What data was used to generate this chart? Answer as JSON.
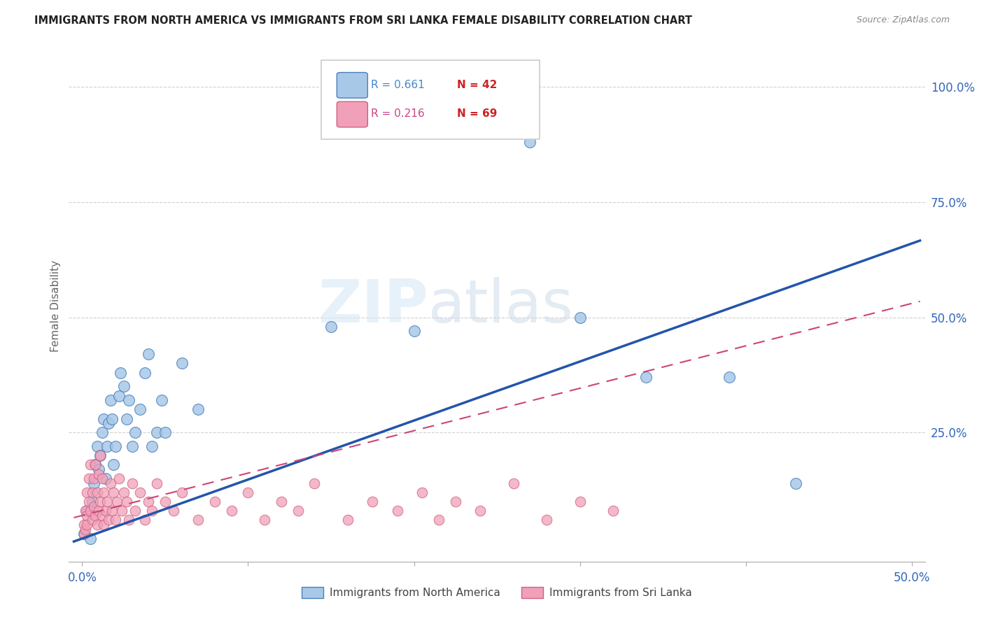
{
  "title": "IMMIGRANTS FROM NORTH AMERICA VS IMMIGRANTS FROM SRI LANKA FEMALE DISABILITY CORRELATION CHART",
  "source": "Source: ZipAtlas.com",
  "ylabel": "Female Disability",
  "xlim": [
    0.0,
    0.5
  ],
  "ylim": [
    0.0,
    1.05
  ],
  "watermark_part1": "ZIP",
  "watermark_part2": "atlas",
  "legend_R1": "R = 0.661",
  "legend_N1": "N = 42",
  "legend_R2": "R = 0.216",
  "legend_N2": "N = 69",
  "color_blue": "#a8c8e8",
  "color_blue_dark": "#4a7fba",
  "color_blue_line": "#2255aa",
  "color_pink": "#f0a0b8",
  "color_pink_dark": "#d06080",
  "color_pink_line": "#cc4477",
  "na_x": [
    0.001,
    0.003,
    0.005,
    0.006,
    0.007,
    0.008,
    0.009,
    0.01,
    0.011,
    0.012,
    0.013,
    0.014,
    0.015,
    0.016,
    0.017,
    0.018,
    0.019,
    0.02,
    0.022,
    0.023,
    0.025,
    0.027,
    0.028,
    0.03,
    0.032,
    0.035,
    0.038,
    0.04,
    0.042,
    0.045,
    0.048,
    0.05,
    0.06,
    0.07,
    0.15,
    0.2,
    0.25,
    0.27,
    0.3,
    0.34,
    0.39,
    0.43
  ],
  "na_y": [
    0.03,
    0.08,
    0.02,
    0.1,
    0.14,
    0.18,
    0.22,
    0.17,
    0.2,
    0.25,
    0.28,
    0.15,
    0.22,
    0.27,
    0.32,
    0.28,
    0.18,
    0.22,
    0.33,
    0.38,
    0.35,
    0.28,
    0.32,
    0.22,
    0.25,
    0.3,
    0.38,
    0.42,
    0.22,
    0.25,
    0.32,
    0.25,
    0.4,
    0.3,
    0.48,
    0.47,
    1.0,
    0.88,
    0.5,
    0.37,
    0.37,
    0.14
  ],
  "sl_x": [
    0.001,
    0.001,
    0.002,
    0.002,
    0.003,
    0.003,
    0.003,
    0.004,
    0.004,
    0.005,
    0.005,
    0.006,
    0.006,
    0.007,
    0.007,
    0.008,
    0.008,
    0.009,
    0.009,
    0.01,
    0.01,
    0.011,
    0.011,
    0.012,
    0.012,
    0.013,
    0.013,
    0.014,
    0.015,
    0.016,
    0.017,
    0.018,
    0.019,
    0.02,
    0.021,
    0.022,
    0.024,
    0.025,
    0.027,
    0.028,
    0.03,
    0.032,
    0.035,
    0.038,
    0.04,
    0.042,
    0.045,
    0.05,
    0.055,
    0.06,
    0.07,
    0.08,
    0.09,
    0.1,
    0.11,
    0.12,
    0.13,
    0.14,
    0.16,
    0.175,
    0.19,
    0.205,
    0.215,
    0.225,
    0.24,
    0.26,
    0.28,
    0.3,
    0.32
  ],
  "sl_y": [
    0.05,
    0.03,
    0.08,
    0.04,
    0.07,
    0.12,
    0.05,
    0.1,
    0.15,
    0.08,
    0.18,
    0.06,
    0.12,
    0.09,
    0.15,
    0.07,
    0.18,
    0.05,
    0.12,
    0.08,
    0.16,
    0.1,
    0.2,
    0.07,
    0.15,
    0.05,
    0.12,
    0.08,
    0.1,
    0.06,
    0.14,
    0.08,
    0.12,
    0.06,
    0.1,
    0.15,
    0.08,
    0.12,
    0.1,
    0.06,
    0.14,
    0.08,
    0.12,
    0.06,
    0.1,
    0.08,
    0.14,
    0.1,
    0.08,
    0.12,
    0.06,
    0.1,
    0.08,
    0.12,
    0.06,
    0.1,
    0.08,
    0.14,
    0.06,
    0.1,
    0.08,
    0.12,
    0.06,
    0.1,
    0.08,
    0.14,
    0.06,
    0.1,
    0.08
  ]
}
